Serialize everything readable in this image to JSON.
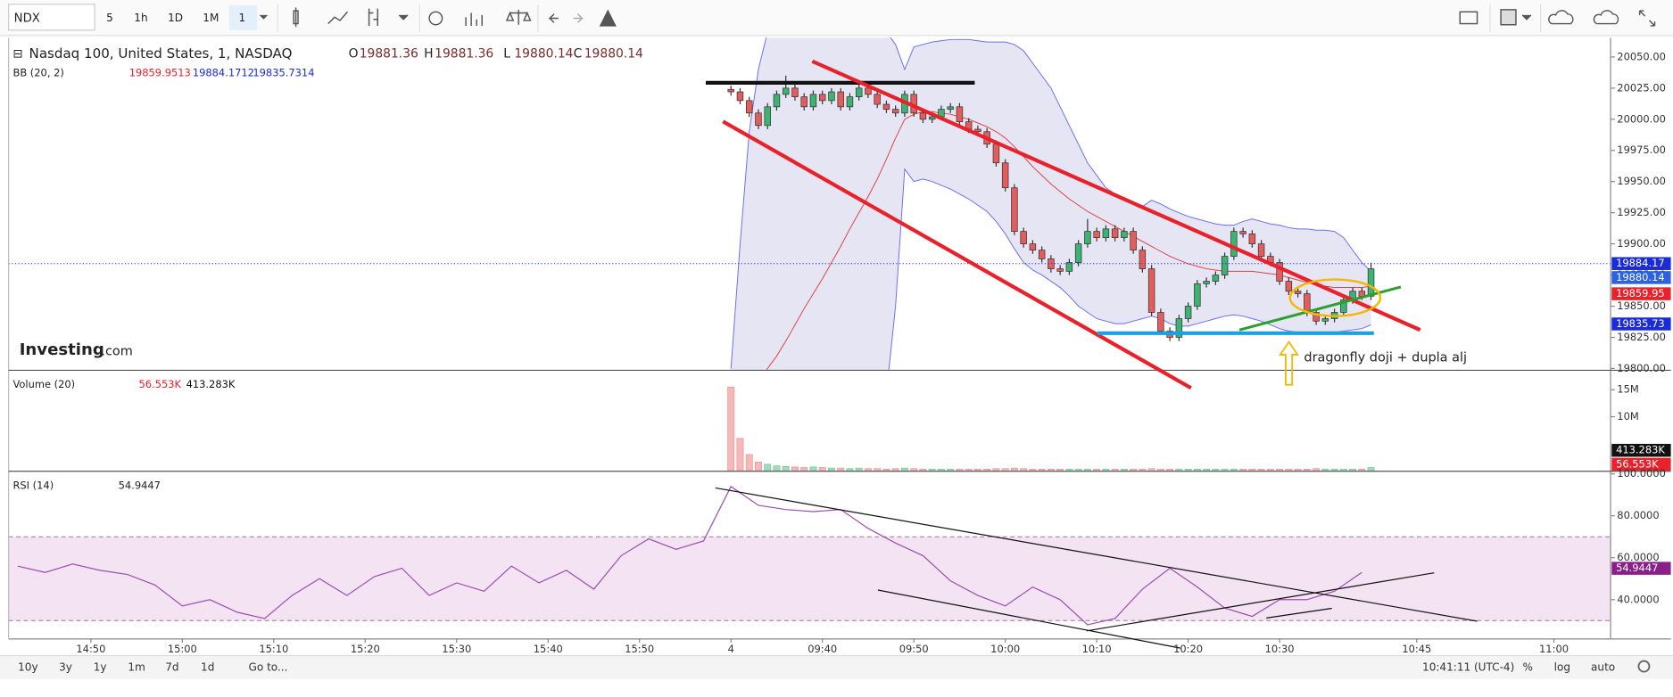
{
  "toolbar": {
    "symbol": "NDX",
    "intervals": [
      "5",
      "1h",
      "1D",
      "1M",
      "1"
    ]
  },
  "chart_data": {
    "type": "candlestick",
    "title": "Nasdaq 100, United States, 1, NASDAQ",
    "ohlc_legend": [
      {
        "label": "O",
        "value": 19881.36
      },
      {
        "label": "H",
        "value": 19881.36
      },
      {
        "label": "L",
        "value": 19880.14
      },
      {
        "label": "C",
        "value": 19880.14
      }
    ],
    "up_color": "#3cb371",
    "down_color": "#e35d5d",
    "candles": [
      [
        20024,
        20027,
        20019,
        20022
      ],
      [
        20022,
        20025,
        20012,
        20015
      ],
      [
        20015,
        20018,
        20002,
        20005
      ],
      [
        20005,
        20008,
        19992,
        19995
      ],
      [
        19995,
        20013,
        19992,
        20010
      ],
      [
        20010,
        20023,
        20007,
        20020
      ],
      [
        20020,
        20035,
        20017,
        20025
      ],
      [
        20025,
        20028,
        20015,
        20018
      ],
      [
        20018,
        20021,
        20007,
        20010
      ],
      [
        20010,
        20023,
        20007,
        20020
      ],
      [
        20020,
        20023,
        20012,
        20015
      ],
      [
        20015,
        20025,
        20012,
        20022
      ],
      [
        20022,
        20025,
        20007,
        20010
      ],
      [
        20010,
        20021,
        20007,
        20018
      ],
      [
        20018,
        20028,
        20015,
        20025
      ],
      [
        20025,
        20028,
        20017,
        20020
      ],
      [
        20020,
        20023,
        20009,
        20012
      ],
      [
        20012,
        20015,
        20005,
        20008
      ],
      [
        20008,
        20011,
        20002,
        20005
      ],
      [
        20005,
        20023,
        20002,
        20020
      ],
      [
        20020,
        20023,
        20002,
        20005
      ],
      [
        20005,
        20008,
        19997,
        20000
      ],
      [
        20000,
        20005,
        19997,
        20002
      ],
      [
        20002,
        20011,
        19999,
        20008
      ],
      [
        20008,
        20013,
        20005,
        20010
      ],
      [
        20010,
        20013,
        19995,
        19998
      ],
      [
        19998,
        20001,
        19989,
        19992
      ],
      [
        19992,
        19995,
        19987,
        19990
      ],
      [
        19990,
        19993,
        19977,
        19980
      ],
      [
        19980,
        19983,
        19962,
        19965
      ],
      [
        19965,
        19968,
        19942,
        19945
      ],
      [
        19945,
        19948,
        19907,
        19910
      ],
      [
        19910,
        19913,
        19897,
        19900
      ],
      [
        19900,
        19903,
        19892,
        19895
      ],
      [
        19895,
        19898,
        19885,
        19888
      ],
      [
        19888,
        19891,
        19877,
        19880
      ],
      [
        19880,
        19883,
        19875,
        19878
      ],
      [
        19878,
        19888,
        19875,
        19885
      ],
      [
        19885,
        19903,
        19882,
        19900
      ],
      [
        19900,
        19920,
        19897,
        19910
      ],
      [
        19910,
        19913,
        19902,
        19905
      ],
      [
        19905,
        19915,
        19902,
        19912
      ],
      [
        19912,
        19915,
        19902,
        19905
      ],
      [
        19905,
        19913,
        19902,
        19910
      ],
      [
        19910,
        19913,
        19892,
        19895
      ],
      [
        19895,
        19898,
        19877,
        19880
      ],
      [
        19880,
        19883,
        19842,
        19845
      ],
      [
        19845,
        19848,
        19827,
        19830
      ],
      [
        19830,
        19833,
        19822,
        19825
      ],
      [
        19825,
        19843,
        19822,
        19840
      ],
      [
        19840,
        19853,
        19837,
        19850
      ],
      [
        19850,
        19871,
        19847,
        19868
      ],
      [
        19868,
        19873,
        19865,
        19870
      ],
      [
        19870,
        19878,
        19867,
        19875
      ],
      [
        19875,
        19893,
        19872,
        19890
      ],
      [
        19890,
        19913,
        19887,
        19910
      ],
      [
        19910,
        19913,
        19905,
        19908
      ],
      [
        19908,
        19911,
        19897,
        19900
      ],
      [
        19900,
        19903,
        19887,
        19890
      ],
      [
        19890,
        19893,
        19882,
        19885
      ],
      [
        19885,
        19888,
        19867,
        19870
      ],
      [
        19870,
        19873,
        19859,
        19862
      ],
      [
        19862,
        19865,
        19857,
        19860
      ],
      [
        19860,
        19863,
        19842,
        19845
      ],
      [
        19845,
        19848,
        19835,
        19838
      ],
      [
        19838,
        19843,
        19835,
        19840
      ],
      [
        19840,
        19848,
        19837,
        19845
      ],
      [
        19845,
        19858,
        19842,
        19855
      ],
      [
        19855,
        19865,
        19852,
        19862
      ],
      [
        19862,
        19865,
        19855,
        19858
      ],
      [
        19858,
        19885,
        19855,
        19880
      ]
    ],
    "xlim": [
      -79,
      96.2
    ],
    "xticks": [
      {
        "value": -70,
        "label": "14:50"
      },
      {
        "value": -60,
        "label": "15:00"
      },
      {
        "value": -50,
        "label": "15:10"
      },
      {
        "value": -40,
        "label": "15:20"
      },
      {
        "value": -30,
        "label": "15:30"
      },
      {
        "value": -20,
        "label": "15:40"
      },
      {
        "value": -10,
        "label": "15:50"
      },
      {
        "value": 0,
        "label": "4"
      },
      {
        "value": 10,
        "label": "09:40"
      },
      {
        "value": 20,
        "label": "09:50"
      },
      {
        "value": 30,
        "label": "10:00"
      },
      {
        "value": 40,
        "label": "10:10"
      },
      {
        "value": 50,
        "label": "10:20"
      },
      {
        "value": 60,
        "label": "10:30"
      },
      {
        "value": 75,
        "label": "10:45"
      },
      {
        "value": 90,
        "label": "11:00"
      }
    ],
    "ylim": [
      19799,
      20065.5
    ],
    "yticks": [
      {
        "value": 20050,
        "label": "20050.00"
      },
      {
        "value": 20025,
        "label": "20025.00"
      },
      {
        "value": 20000,
        "label": "20000.00"
      },
      {
        "value": 19975,
        "label": "19975.00"
      },
      {
        "value": 19950,
        "label": "19950.00"
      },
      {
        "value": 19925,
        "label": "19925.00"
      },
      {
        "value": 19900,
        "label": "19900.00"
      },
      {
        "value": 19875,
        "label": "19875.00"
      },
      {
        "value": 19850,
        "label": "19850.00"
      },
      {
        "value": 19825,
        "label": "19825.00"
      },
      {
        "value": 19800,
        "label": "19800.00"
      }
    ],
    "price_tags": [
      {
        "value": 19884.17,
        "color": "#1a2bd8"
      },
      {
        "value": 19880.14,
        "color": "#2a62e0"
      },
      {
        "value": 19859.95,
        "color": "#e8212b"
      },
      {
        "value": 19835.73,
        "color": "#1a2bd8"
      }
    ],
    "bollinger": {
      "name": "BB (20, 2)",
      "legend": [
        {
          "value": 19859.9513,
          "color": "#e8212b"
        },
        {
          "value": 19884.1712,
          "color": "#1a2bd8"
        },
        {
          "value": 19835.7314,
          "color": "#1a2bd8"
        }
      ],
      "band_color": "#6c6cf0",
      "basis_color": "#e04040",
      "fill": "#dcdcf0",
      "upper": [
        19800,
        19900,
        19990,
        20040,
        20070,
        20085,
        20090,
        20090,
        20090,
        20090,
        20090,
        20090,
        20090,
        20088,
        20085,
        20080,
        20075,
        20070,
        20060,
        20040,
        20058,
        20060,
        20062,
        20063,
        20064,
        20064,
        20064,
        20063,
        20062,
        20062,
        20062,
        20060,
        20055,
        20045,
        20035,
        20025,
        20010,
        19995,
        19980,
        19965,
        19955,
        19945,
        19940,
        19935,
        19932,
        19930,
        19935,
        19932,
        19928,
        19925,
        19922,
        19920,
        19918,
        19916,
        19915,
        19915,
        19918,
        19920,
        19918,
        19916,
        19915,
        19913,
        19912,
        19912,
        19911,
        19911,
        19910,
        19905,
        19895,
        19885,
        19878
      ],
      "middle": [
        19760,
        19770,
        19780,
        19790,
        19800,
        19810,
        19822,
        19835,
        19848,
        19860,
        19872,
        19885,
        19898,
        19912,
        19925,
        19938,
        19952,
        19968,
        19985,
        20000,
        20004,
        20006,
        20006,
        20005,
        20004,
        20002,
        20000,
        19997,
        19994,
        19990,
        19985,
        19978,
        19970,
        19962,
        19955,
        19948,
        19942,
        19936,
        19931,
        19926,
        19922,
        19918,
        19914,
        19910,
        19906,
        19902,
        19898,
        19894,
        19890,
        19887,
        19884,
        19882,
        19880,
        19879,
        19878,
        19878,
        19878,
        19878,
        19877,
        19876,
        19875,
        19873,
        19871,
        19869,
        19867,
        19866,
        19865,
        19865,
        19865,
        19865,
        19866
      ],
      "lower": [
        19700,
        19680,
        19660,
        19640,
        19630,
        19620,
        19615,
        19610,
        19610,
        19615,
        19620,
        19630,
        19645,
        19660,
        19680,
        19700,
        19730,
        19780,
        19850,
        19960,
        19950,
        19952,
        19950,
        19947,
        19944,
        19940,
        19936,
        19931,
        19926,
        19918,
        19908,
        19896,
        19885,
        19879,
        19875,
        19870,
        19865,
        19858,
        19850,
        19845,
        19840,
        19838,
        19836,
        19836,
        19838,
        19840,
        19842,
        19840,
        19836,
        19834,
        19834,
        19836,
        19838,
        19840,
        19842,
        19843,
        19842,
        19840,
        19838,
        19835,
        19832,
        19830,
        19829,
        19828,
        19828,
        19828,
        19829,
        19830,
        19831,
        19832,
        19835
      ]
    },
    "volume": {
      "name": "Volume (20)",
      "legend": [
        {
          "value": "56.553K",
          "color": "#e8212b"
        },
        {
          "value": "413.283K",
          "color": "#111111"
        }
      ],
      "values": [
        15.5,
        6,
        3,
        1.6,
        1.2,
        0.9,
        0.8,
        0.7,
        0.6,
        0.7,
        0.6,
        0.5,
        0.5,
        0.4,
        0.5,
        0.4,
        0.4,
        0.3,
        0.4,
        0.5,
        0.4,
        0.3,
        0.3,
        0.3,
        0.3,
        0.3,
        0.3,
        0.3,
        0.3,
        0.4,
        0.4,
        0.5,
        0.4,
        0.3,
        0.3,
        0.3,
        0.3,
        0.3,
        0.3,
        0.3,
        0.3,
        0.3,
        0.3,
        0.3,
        0.3,
        0.3,
        0.4,
        0.3,
        0.3,
        0.3,
        0.3,
        0.3,
        0.3,
        0.3,
        0.3,
        0.3,
        0.3,
        0.3,
        0.3,
        0.3,
        0.3,
        0.3,
        0.3,
        0.3,
        0.4,
        0.3,
        0.3,
        0.3,
        0.3,
        0.3,
        0.6
      ],
      "ylim": [
        0,
        18.5
      ],
      "yticks": [
        {
          "value": 15,
          "label": "15M"
        },
        {
          "value": 10,
          "label": "10M"
        }
      ]
    },
    "rsi": {
      "name": "RSI (14)",
      "legend": 54.9447,
      "color": "#9c4fb0",
      "band": [
        30,
        70
      ],
      "x": [
        -78,
        -75,
        -72,
        -69,
        -66,
        -63,
        -60,
        -57,
        -54,
        -51,
        -48,
        -45,
        -42,
        -39,
        -36,
        -33,
        -30,
        -27,
        -24,
        -21,
        -18,
        -15,
        -12,
        -9,
        -6,
        -3,
        0,
        3,
        6,
        9,
        12,
        15,
        18,
        21,
        24,
        27,
        30,
        33,
        36,
        39,
        42,
        45,
        48,
        51,
        54,
        57,
        60,
        63,
        66,
        69
      ],
      "values": [
        56,
        53,
        57,
        54,
        52,
        47,
        37,
        40,
        34,
        31,
        42,
        50,
        42,
        51,
        55,
        42,
        48,
        44,
        56,
        48,
        54,
        45,
        61,
        69,
        64,
        68,
        94,
        85,
        83,
        82,
        83,
        74,
        67,
        61,
        49,
        42,
        37,
        46,
        40,
        28,
        31,
        45,
        55,
        46,
        36,
        32,
        40,
        40,
        44,
        53
      ],
      "ylim": [
        21.5,
        101
      ],
      "yticks": [
        {
          "value": 100,
          "label": "100.0000"
        },
        {
          "value": 80,
          "label": "80.0000"
        },
        {
          "value": 60,
          "label": "60.0000"
        },
        {
          "value": 40,
          "label": "40.0000"
        }
      ]
    },
    "annotation": "dragonfly doji + dupla alj",
    "logo": [
      "Investing",
      ".com"
    ]
  },
  "footer": {
    "ranges": [
      "10y",
      "3y",
      "1y",
      "1m",
      "7d",
      "1d"
    ],
    "goto": "Go to...",
    "clock": "10:41:11 (UTC-4)",
    "options": [
      "%",
      "log",
      "auto"
    ]
  }
}
